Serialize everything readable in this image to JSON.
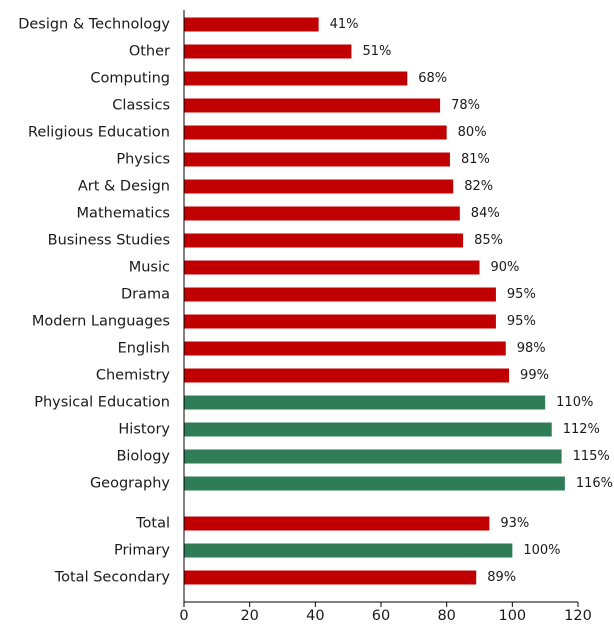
{
  "chart_data": {
    "type": "bar",
    "orientation": "horizontal",
    "title": "",
    "xlabel": "",
    "ylabel": "",
    "xlim": [
      0,
      120
    ],
    "x_ticks": [
      "0",
      "20",
      "40",
      "60",
      "80",
      "100",
      "120"
    ],
    "grid": false,
    "legend": "none",
    "colors": {
      "below_100": "#c00000",
      "at_or_above_100": "#2e7d57"
    },
    "groups": [
      {
        "categories": [
          "Design & Technology",
          "Other",
          "Computing",
          "Classics",
          "Religious Education",
          "Physics",
          "Art & Design",
          "Mathematics",
          "Business Studies",
          "Music",
          "Drama",
          "Modern Languages",
          "English",
          "Chemistry",
          "Physical Education",
          "History",
          "Biology",
          "Geography"
        ],
        "values": [
          41,
          51,
          68,
          78,
          80,
          81,
          82,
          84,
          85,
          90,
          95,
          95,
          98,
          99,
          110,
          112,
          115,
          116
        ],
        "labels": [
          "41%",
          "51%",
          "68%",
          "78%",
          "80%",
          "81%",
          "82%",
          "84%",
          "85%",
          "90%",
          "95%",
          "95%",
          "98%",
          "99%",
          "110%",
          "112%",
          "115%",
          "116%"
        ]
      },
      {
        "categories": [
          "Total",
          "Primary",
          "Total Secondary"
        ],
        "values": [
          93,
          100,
          89
        ],
        "labels": [
          "93%",
          "100%",
          "89%"
        ]
      }
    ]
  }
}
